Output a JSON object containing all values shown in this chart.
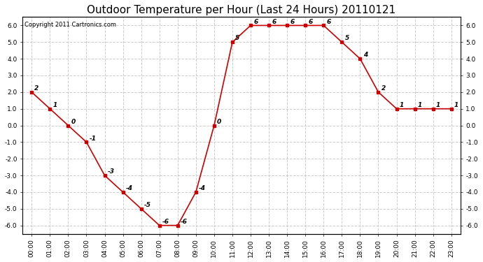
{
  "title": "Outdoor Temperature per Hour (Last 24 Hours) 20110121",
  "copyright_text": "Copyright 2011 Cartronics.com",
  "hours": [
    "00:00",
    "01:00",
    "02:00",
    "03:00",
    "04:00",
    "05:00",
    "06:00",
    "07:00",
    "08:00",
    "09:00",
    "10:00",
    "11:00",
    "12:00",
    "13:00",
    "14:00",
    "15:00",
    "16:00",
    "17:00",
    "18:00",
    "19:00",
    "20:00",
    "21:00",
    "22:00",
    "23:00"
  ],
  "temps": [
    2,
    1,
    0,
    -1,
    -3,
    -4,
    -5,
    -6,
    -6,
    -4,
    0,
    5,
    6,
    6,
    6,
    6,
    6,
    5,
    4,
    2,
    1,
    1,
    1,
    1
  ],
  "line_color": "#cc0000",
  "marker": "s",
  "marker_color": "#cc0000",
  "marker_size": 3,
  "ylim": [
    -6.5,
    6.5
  ],
  "yticks": [
    -6.0,
    -5.0,
    -4.0,
    -3.0,
    -2.0,
    -1.0,
    0.0,
    1.0,
    2.0,
    3.0,
    4.0,
    5.0,
    6.0
  ],
  "grid_color": "#cccccc",
  "grid_style": "--",
  "bg_color": "#ffffff",
  "plot_bg_color": "#ffffff",
  "title_fontsize": 11,
  "annot_fontsize": 6.5,
  "tick_fontsize": 6.5,
  "copyright_fontsize": 6
}
